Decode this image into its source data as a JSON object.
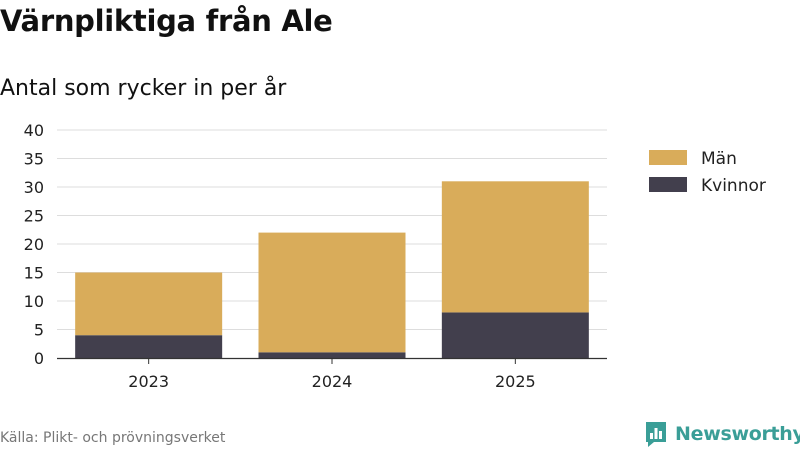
{
  "title": "Värnpliktiga från Ale",
  "subtitle": "Antal som rycker in per år",
  "source": "Källa: Plikt- och prövningsverket",
  "brand": {
    "name": "Newsworthy",
    "icon": "bar-chart-speech-bubble-icon",
    "color": "#3a9e97"
  },
  "chart_data": {
    "type": "bar",
    "stacked": true,
    "categories": [
      "2023",
      "2024",
      "2025"
    ],
    "series": [
      {
        "name": "Kvinnor",
        "values": [
          4,
          1,
          8
        ],
        "color": "#423f4d"
      },
      {
        "name": "Män",
        "values": [
          11,
          21,
          23
        ],
        "color": "#d9ac5a"
      }
    ],
    "ylim": [
      0,
      40
    ],
    "yticks": [
      0,
      5,
      10,
      15,
      20,
      25,
      30,
      35,
      40
    ],
    "grid": true,
    "legend": "right",
    "legend_order": [
      "Män",
      "Kvinnor"
    ]
  }
}
